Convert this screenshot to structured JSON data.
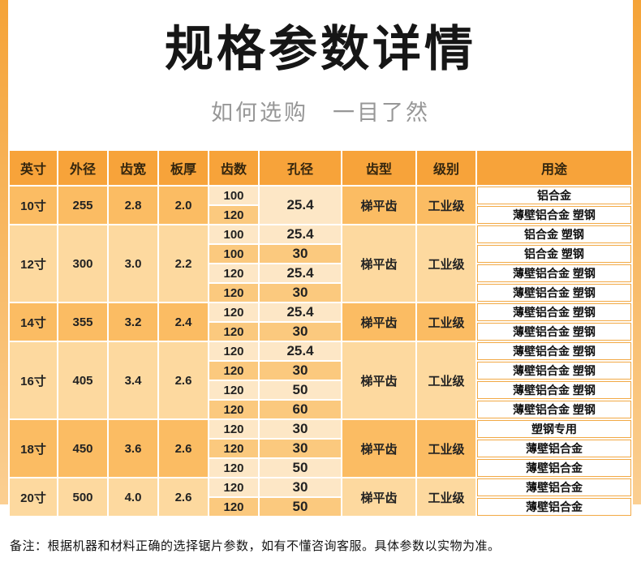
{
  "page": {
    "title": "规格参数详情",
    "subtitle": "如何选购　一目了然",
    "note": "备注：根据机器和材料正确的选择锯片参数，如有不懂咨询客服。具体参数以实物为准。"
  },
  "colors": {
    "header_bg": "#F7A33A",
    "group_shade_a": "#FBBC63",
    "group_shade_b": "#FDD99F",
    "row_light": "#FDE7C6",
    "row_mid": "#FBC97E",
    "usage_bg": "#FFFFFF",
    "usage_border": "#F2A945",
    "side_strip_top": "#F5A337",
    "side_strip_bottom": "#FBCF92"
  },
  "table": {
    "headers": [
      "英寸",
      "外径",
      "齿宽",
      "板厚",
      "齿数",
      "孔径",
      "齿型",
      "级别",
      "用途"
    ],
    "groups": [
      {
        "inch": "10寸",
        "outer_diameter": "255",
        "tooth_width": "2.8",
        "plate_thickness": "2.0",
        "tooth_type": "梯平齿",
        "grade": "工业级",
        "rows": [
          {
            "teeth": "100",
            "hole": "25.4",
            "hole_rowspan": 2,
            "usage": "铝合金"
          },
          {
            "teeth": "120",
            "usage": "薄壁铝合金 塑钢"
          }
        ]
      },
      {
        "inch": "12寸",
        "outer_diameter": "300",
        "tooth_width": "3.0",
        "plate_thickness": "2.2",
        "tooth_type": "梯平齿",
        "grade": "工业级",
        "rows": [
          {
            "teeth": "100",
            "hole": "25.4",
            "usage": "铝合金 塑钢"
          },
          {
            "teeth": "100",
            "hole": "30",
            "usage": "铝合金 塑钢"
          },
          {
            "teeth": "120",
            "hole": "25.4",
            "usage": "薄壁铝合金 塑钢"
          },
          {
            "teeth": "120",
            "hole": "30",
            "usage": "薄壁铝合金 塑钢"
          }
        ]
      },
      {
        "inch": "14寸",
        "outer_diameter": "355",
        "tooth_width": "3.2",
        "plate_thickness": "2.4",
        "tooth_type": "梯平齿",
        "grade": "工业级",
        "rows": [
          {
            "teeth": "120",
            "hole": "25.4",
            "usage": "薄壁铝合金 塑钢"
          },
          {
            "teeth": "120",
            "hole": "30",
            "usage": "薄壁铝合金 塑钢"
          }
        ]
      },
      {
        "inch": "16寸",
        "outer_diameter": "405",
        "tooth_width": "3.4",
        "plate_thickness": "2.6",
        "tooth_type": "梯平齿",
        "grade": "工业级",
        "rows": [
          {
            "teeth": "120",
            "hole": "25.4",
            "usage": "薄壁铝合金 塑钢"
          },
          {
            "teeth": "120",
            "hole": "30",
            "usage": "薄壁铝合金 塑钢"
          },
          {
            "teeth": "120",
            "hole": "50",
            "usage": "薄壁铝合金 塑钢"
          },
          {
            "teeth": "120",
            "hole": "60",
            "usage": "薄壁铝合金 塑钢"
          }
        ]
      },
      {
        "inch": "18寸",
        "outer_diameter": "450",
        "tooth_width": "3.6",
        "plate_thickness": "2.6",
        "tooth_type": "梯平齿",
        "grade": "工业级",
        "rows": [
          {
            "teeth": "120",
            "hole": "30",
            "usage": "塑钢专用"
          },
          {
            "teeth": "120",
            "hole": "30",
            "usage": "薄壁铝合金"
          },
          {
            "teeth": "120",
            "hole": "50",
            "usage": "薄壁铝合金"
          }
        ]
      },
      {
        "inch": "20寸",
        "outer_diameter": "500",
        "tooth_width": "4.0",
        "plate_thickness": "2.6",
        "tooth_type": "梯平齿",
        "grade": "工业级",
        "rows": [
          {
            "teeth": "120",
            "hole": "30",
            "usage": "薄壁铝合金"
          },
          {
            "teeth": "120",
            "hole": "50",
            "usage": "薄壁铝合金"
          }
        ]
      }
    ]
  }
}
